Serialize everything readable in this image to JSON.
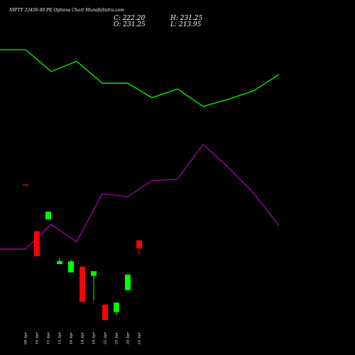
{
  "chart_data": {
    "type": "candlestick",
    "title": "NIFTY 22450.00 PE Options Chart MunafaSutra.com",
    "ohlc_summary": {
      "close_label": "C: 222.20",
      "open_label": "O: 231.25",
      "high_label": "H: 231.25",
      "low_label": "L: 213.95"
    },
    "colors": {
      "up": "#00ff00",
      "down": "#ff0000",
      "upper_line": "#00ff00",
      "lower_line": "#b000b0",
      "background": "#000000",
      "text": "#ffffff"
    },
    "candles": [
      {
        "date": "08 Apr",
        "open": 232.1,
        "high": 232.1,
        "low": 231.8,
        "close": 231.8
      },
      {
        "date": "10 Apr",
        "open": 205.8,
        "high": 205.8,
        "low": 191.6,
        "close": 191.6
      },
      {
        "date": "11 Apr",
        "open": 212.4,
        "high": 216.8,
        "low": 212.4,
        "close": 216.8
      },
      {
        "date": "15 Apr",
        "open": 187.2,
        "high": 190.7,
        "low": 187.2,
        "close": 188.9
      },
      {
        "date": "16 Apr",
        "open": 182.5,
        "high": 189.8,
        "low": 182.5,
        "close": 188.7
      },
      {
        "date": "18 Apr",
        "open": 185.8,
        "high": 185.8,
        "low": 165.9,
        "close": 165.9
      },
      {
        "date": "19 Apr",
        "open": 180.6,
        "high": 183.2,
        "low": 166.7,
        "close": 183.2
      },
      {
        "date": "22 Apr",
        "open": 164.4,
        "high": 164.4,
        "low": 155.6,
        "close": 155.6
      },
      {
        "date": "23 Apr",
        "open": 160.2,
        "high": 165.5,
        "low": 158.4,
        "close": 165.5
      },
      {
        "date": "24 Apr",
        "open": 172.5,
        "high": 181.3,
        "low": 172.5,
        "close": 181.3
      },
      {
        "date": "25 Apr",
        "open": 200.6,
        "high": 200.6,
        "low": 192.5,
        "close": 196.0
      }
    ],
    "upper_line": [
      401,
      401,
      386,
      393,
      378,
      378,
      368,
      374,
      362,
      367,
      373,
      384
    ],
    "lower_line": [
      264,
      264,
      281,
      269,
      302,
      300,
      311,
      312,
      336,
      320,
      302,
      280
    ]
  }
}
